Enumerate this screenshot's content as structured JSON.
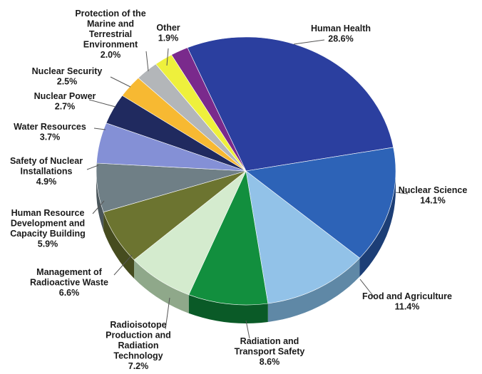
{
  "chart_data": {
    "type": "pie",
    "title": "",
    "legend": "none",
    "slices": [
      {
        "label": [
          "Human Health"
        ],
        "value": 28.6,
        "value_label": "28.6%",
        "color": "#2b3f9f",
        "side": "#1a2766"
      },
      {
        "label": [
          "Nuclear Science"
        ],
        "value": 14.1,
        "value_label": "14.1%",
        "color": "#2d63b7",
        "side": "#1c3e76"
      },
      {
        "label": [
          "Food and Agriculture"
        ],
        "value": 11.4,
        "value_label": "11.4%",
        "color": "#92c2e8",
        "side": "#5f88a6"
      },
      {
        "label": [
          "Radiation and",
          "Transport Safety"
        ],
        "value": 8.6,
        "value_label": "8.6%",
        "color": "#128f3e",
        "side": "#0a5a27"
      },
      {
        "label": [
          "Radioisotope",
          "Production and",
          "Radiation",
          "Technology"
        ],
        "value": 7.2,
        "value_label": "7.2%",
        "color": "#d4ebce",
        "side": "#8fa88a"
      },
      {
        "label": [
          "Management of",
          "Radioactive Waste"
        ],
        "value": 6.6,
        "value_label": "6.6%",
        "color": "#6c7430",
        "side": "#464c1f"
      },
      {
        "label": [
          "Human Resource",
          "Development and",
          "Capacity Building"
        ],
        "value": 5.9,
        "value_label": "5.9%",
        "color": "#6f7f86",
        "side": "#4a565b"
      },
      {
        "label": [
          "Safety of Nuclear",
          "Installations"
        ],
        "value": 4.9,
        "value_label": "4.9%",
        "color": "#8490d6",
        "side": "#57609a"
      },
      {
        "label": [
          "Water Resources"
        ],
        "value": 3.7,
        "value_label": "3.7%",
        "color": "#202a5f",
        "side": "#121839"
      },
      {
        "label": [
          "Nuclear Power"
        ],
        "value": 2.7,
        "value_label": "2.7%",
        "color": "#f7b932",
        "side": "#b0831f"
      },
      {
        "label": [
          "Nuclear Security"
        ],
        "value": 2.5,
        "value_label": "2.5%",
        "color": "#b3b6b9",
        "side": "#7c7f82"
      },
      {
        "label": [
          "Protection of the",
          "Marine and",
          "Terrestrial",
          "Environment"
        ],
        "value": 2.0,
        "value_label": "2.0%",
        "color": "#eef03c",
        "side": "#a9aa25"
      },
      {
        "label": [
          "Other"
        ],
        "value": 1.9,
        "value_label": "1.9%",
        "color": "#7a2a8c",
        "side": "#4f1a5c"
      }
    ]
  }
}
